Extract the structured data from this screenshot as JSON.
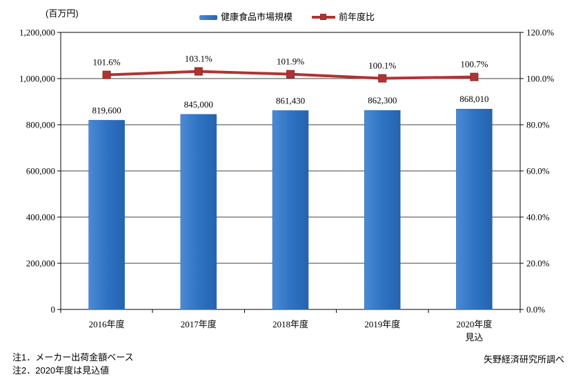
{
  "chart": {
    "unit_label": "(百万円)",
    "legend": {
      "items": [
        {
          "label": "健康食品市場規模",
          "type": "bar"
        },
        {
          "label": "前年度比",
          "type": "line"
        }
      ]
    },
    "notes": [
      "注1．メーカー出荷金額ベース",
      "注2．2020年度は見込値"
    ],
    "source": "矢野経済研究所調べ"
  },
  "chart_data": {
    "type": "bar+line",
    "title": "",
    "categories": [
      "2016年度",
      "2017年度",
      "2018年度",
      "2019年度",
      "2020年度"
    ],
    "category_sub_labels": [
      "",
      "",
      "",
      "",
      "見込"
    ],
    "series": [
      {
        "name": "健康食品市場規模",
        "type": "bar",
        "axis": "left",
        "values": [
          819600,
          845000,
          861430,
          862300,
          868010
        ],
        "value_labels": [
          "819,600",
          "845,000",
          "861,430",
          "862,300",
          "868,010"
        ],
        "color": "#2E73C4",
        "color_light": "#4C8AD3",
        "color_dark": "#2563AE"
      },
      {
        "name": "前年度比",
        "type": "line",
        "axis": "right",
        "values": [
          101.6,
          103.1,
          101.9,
          100.1,
          100.7
        ],
        "value_labels": [
          "101.6%",
          "103.1%",
          "101.9%",
          "100.1%",
          "100.7%"
        ],
        "color": "#B23232",
        "marker": "square",
        "marker_border": "#8C2A2A"
      }
    ],
    "left_axis": {
      "unit": "百万円",
      "min": 0,
      "max": 1200000,
      "step": 200000,
      "tick_labels": [
        "0",
        "200,000",
        "400,000",
        "600,000",
        "800,000",
        "1,000,000",
        "1,200,000"
      ]
    },
    "right_axis": {
      "min": 0,
      "max": 120,
      "step": 20,
      "tick_labels": [
        "0.0%",
        "20.0%",
        "40.0%",
        "60.0%",
        "80.0%",
        "100.0%",
        "120.0%"
      ]
    },
    "grid": true,
    "legend_position": "top",
    "gridline_color": "#3F3F3F",
    "axis_color": "#000000"
  }
}
